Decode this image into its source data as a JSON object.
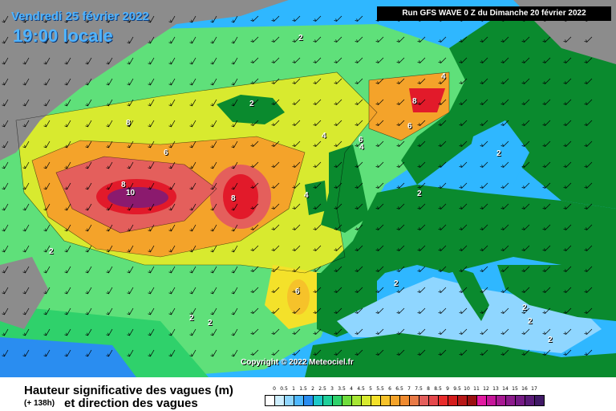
{
  "header": {
    "date": "Vendredi 25 février 2022",
    "local_time": "19:00 locale",
    "run_info": "Run GFS WAVE 0 Z du Dimanche 20 février 2022"
  },
  "map": {
    "copyright": "Copyright © 2022 Meteociel.fr",
    "contour_labels": [
      {
        "text": "2",
        "pos": "greenland-east"
      },
      {
        "text": "2",
        "pos": "iceland"
      },
      {
        "text": "8",
        "pos": "iceland-west"
      },
      {
        "text": "6",
        "pos": "atlantic-north"
      },
      {
        "text": "8",
        "pos": "atlantic-core-west"
      },
      {
        "text": "10",
        "pos": "atlantic-core"
      },
      {
        "text": "8",
        "pos": "atlantic-core-east"
      },
      {
        "text": "4",
        "pos": "norwegian-sea"
      },
      {
        "text": "4",
        "pos": "norway-north"
      },
      {
        "text": "8",
        "pos": "norway-coast"
      },
      {
        "text": "6",
        "pos": "norway-south"
      },
      {
        "text": "6",
        "pos": "north-sea-north"
      },
      {
        "text": "4",
        "pos": "north-sea"
      },
      {
        "text": "2",
        "pos": "skagerrak"
      },
      {
        "text": "2",
        "pos": "baltic"
      },
      {
        "text": "4",
        "pos": "ireland-west"
      },
      {
        "text": "6",
        "pos": "bay-of-biscay"
      },
      {
        "text": "2",
        "pos": "atlantic-south-west"
      },
      {
        "text": "2",
        "pos": "azores-1"
      },
      {
        "text": "2",
        "pos": "azores-2"
      },
      {
        "text": "2",
        "pos": "mediterranean-west"
      },
      {
        "text": "2",
        "pos": "mediterranean-east"
      },
      {
        "text": "2",
        "pos": "aegean"
      },
      {
        "text": "2",
        "pos": "crete"
      }
    ],
    "colors": {
      "land": "#0a8a2e",
      "ice_land": "#8c8c8c",
      "ocean_low": "#2fb7ff",
      "ocean_mid": "#5fe07a",
      "wave_peak": "#8b1a6e"
    }
  },
  "legend": {
    "title": "Hauteur significative des vagues (m)",
    "offset": "(+ 138h)",
    "subtitle": "et direction des vagues",
    "ticks": [
      "0",
      "0.5",
      "1",
      "1.5",
      "2",
      "2.5",
      "3",
      "3.5",
      "4",
      "4.5",
      "5",
      "5.5",
      "6",
      "6.5",
      "7",
      "7.5",
      "8",
      "8.5",
      "9",
      "9.5",
      "10",
      "11",
      "12",
      "13",
      "14",
      "15",
      "16",
      "17"
    ],
    "colors": [
      "#ffffff",
      "#cdeefe",
      "#8fd6ff",
      "#4fb8ff",
      "#2a8df0",
      "#1ec8c8",
      "#1fcf9a",
      "#2fd16b",
      "#6fdc3c",
      "#a7e634",
      "#d8ea2f",
      "#f4e12a",
      "#f6c22a",
      "#f4a32a",
      "#ef8a2f",
      "#e97a46",
      "#e45f5c",
      "#e5484c",
      "#e92c2c",
      "#d41c1c",
      "#b81818",
      "#9a1010",
      "#e21aa1",
      "#c6159a",
      "#a81893",
      "#8c1a8c",
      "#751a85",
      "#5a1a78",
      "#401966"
    ]
  }
}
